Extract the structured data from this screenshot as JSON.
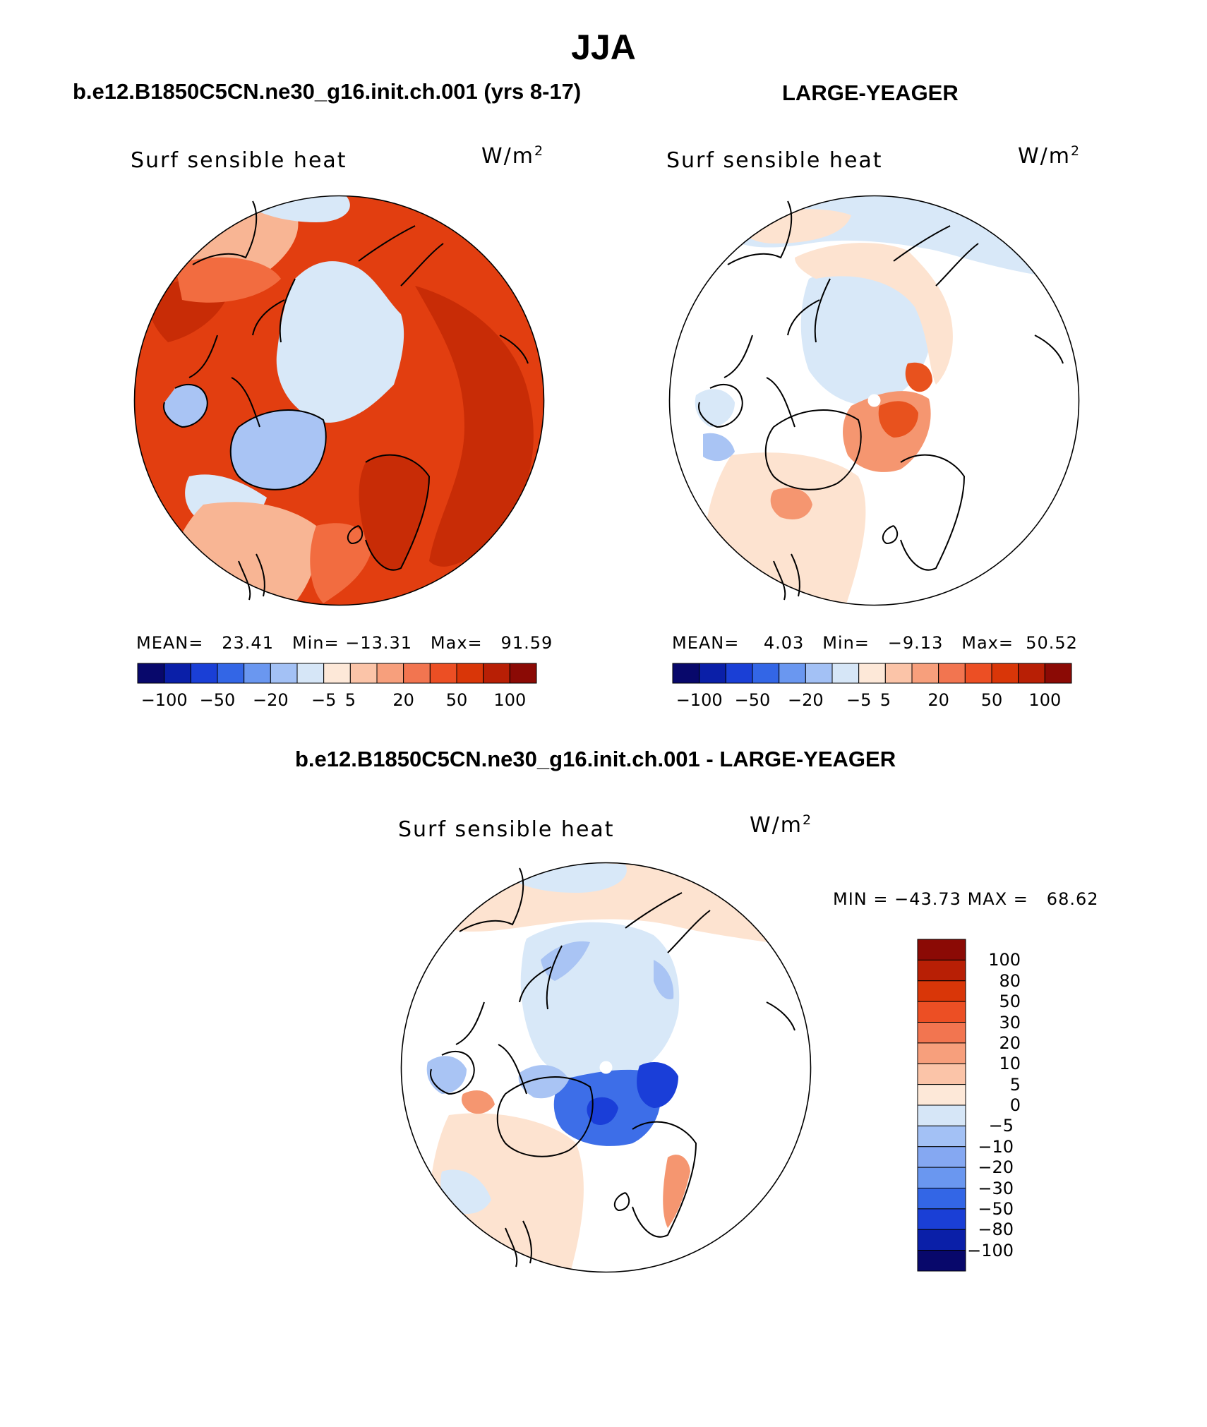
{
  "page_title": "JJA",
  "panels": [
    {
      "title": "b.e12.B1850C5CN.ne30_g16.init.ch.001 (yrs 8-17)",
      "variable": "Surf sensible heat",
      "unit_base": "W/m",
      "unit_exp": "2",
      "stats": {
        "mean_label": "MEAN=",
        "mean": "23.41",
        "min_label": "Min=",
        "min": "−13.31",
        "max_label": "Max=",
        "max": "91.59"
      },
      "field": "model"
    },
    {
      "title": "LARGE-YEAGER",
      "variable": "Surf sensible heat",
      "unit_base": "W/m",
      "unit_exp": "2",
      "stats": {
        "mean_label": "MEAN=",
        "mean": "4.03",
        "min_label": "Min=",
        "min": "−9.13",
        "max_label": "Max=",
        "max": "50.52"
      },
      "field": "obs"
    },
    {
      "title": "b.e12.B1850C5CN.ne30_g16.init.ch.001 - LARGE-YEAGER",
      "variable": "Surf sensible heat",
      "unit_base": "W/m",
      "unit_exp": "2",
      "stats": {
        "min_label": "MIN =",
        "min": "−43.73",
        "max_label": "MAX =",
        "max": "68.62"
      },
      "field": "difference"
    }
  ],
  "horizontal_colorbar": {
    "colors": [
      "#08086b",
      "#0a1fa8",
      "#1a3fd6",
      "#3366e6",
      "#6a97f0",
      "#a3c1f5",
      "#d6e6f7",
      "#fde8d8",
      "#fbc4a8",
      "#f79f7c",
      "#f27550",
      "#ec4f24",
      "#d93608",
      "#b81f05",
      "#8b0a05"
    ],
    "tick_labels": [
      "−100",
      "−50",
      "−20",
      "−5",
      "5",
      "20",
      "50",
      "100"
    ],
    "tick_boundaries": [
      1,
      3,
      5,
      7,
      8,
      10,
      12,
      14
    ]
  },
  "vertical_colorbar": {
    "colors": [
      "#8b0a05",
      "#b81f05",
      "#d93608",
      "#ec4f24",
      "#f27550",
      "#f79f7c",
      "#fbc4a8",
      "#fde8d8",
      "#d6e6f7",
      "#a3c1f5",
      "#85a8f2",
      "#6a97f0",
      "#3366e6",
      "#1a3fd6",
      "#0a1fa8",
      "#08086b"
    ],
    "tick_labels": [
      "100",
      "80",
      "50",
      "30",
      "20",
      "10",
      "5",
      "0",
      "−5",
      "−10",
      "−20",
      "−30",
      "−50",
      "−80",
      "−100"
    ]
  },
  "map_colors": {
    "model_base": "#e23e10",
    "model_dark": "#c82c06",
    "model_mid": "#f26c40",
    "model_light": "#f8b594",
    "obs_base": "#fde3d0",
    "obs_warm": "#f59670",
    "obs_hot": "#e8521e",
    "ice_blue": "#d8e8f8",
    "blue_mid": "#a9c4f4",
    "blue_strong": "#3d6ee8",
    "blue_deep": "#1a3ed8",
    "land": "#ffffff",
    "outline": "#000000"
  }
}
